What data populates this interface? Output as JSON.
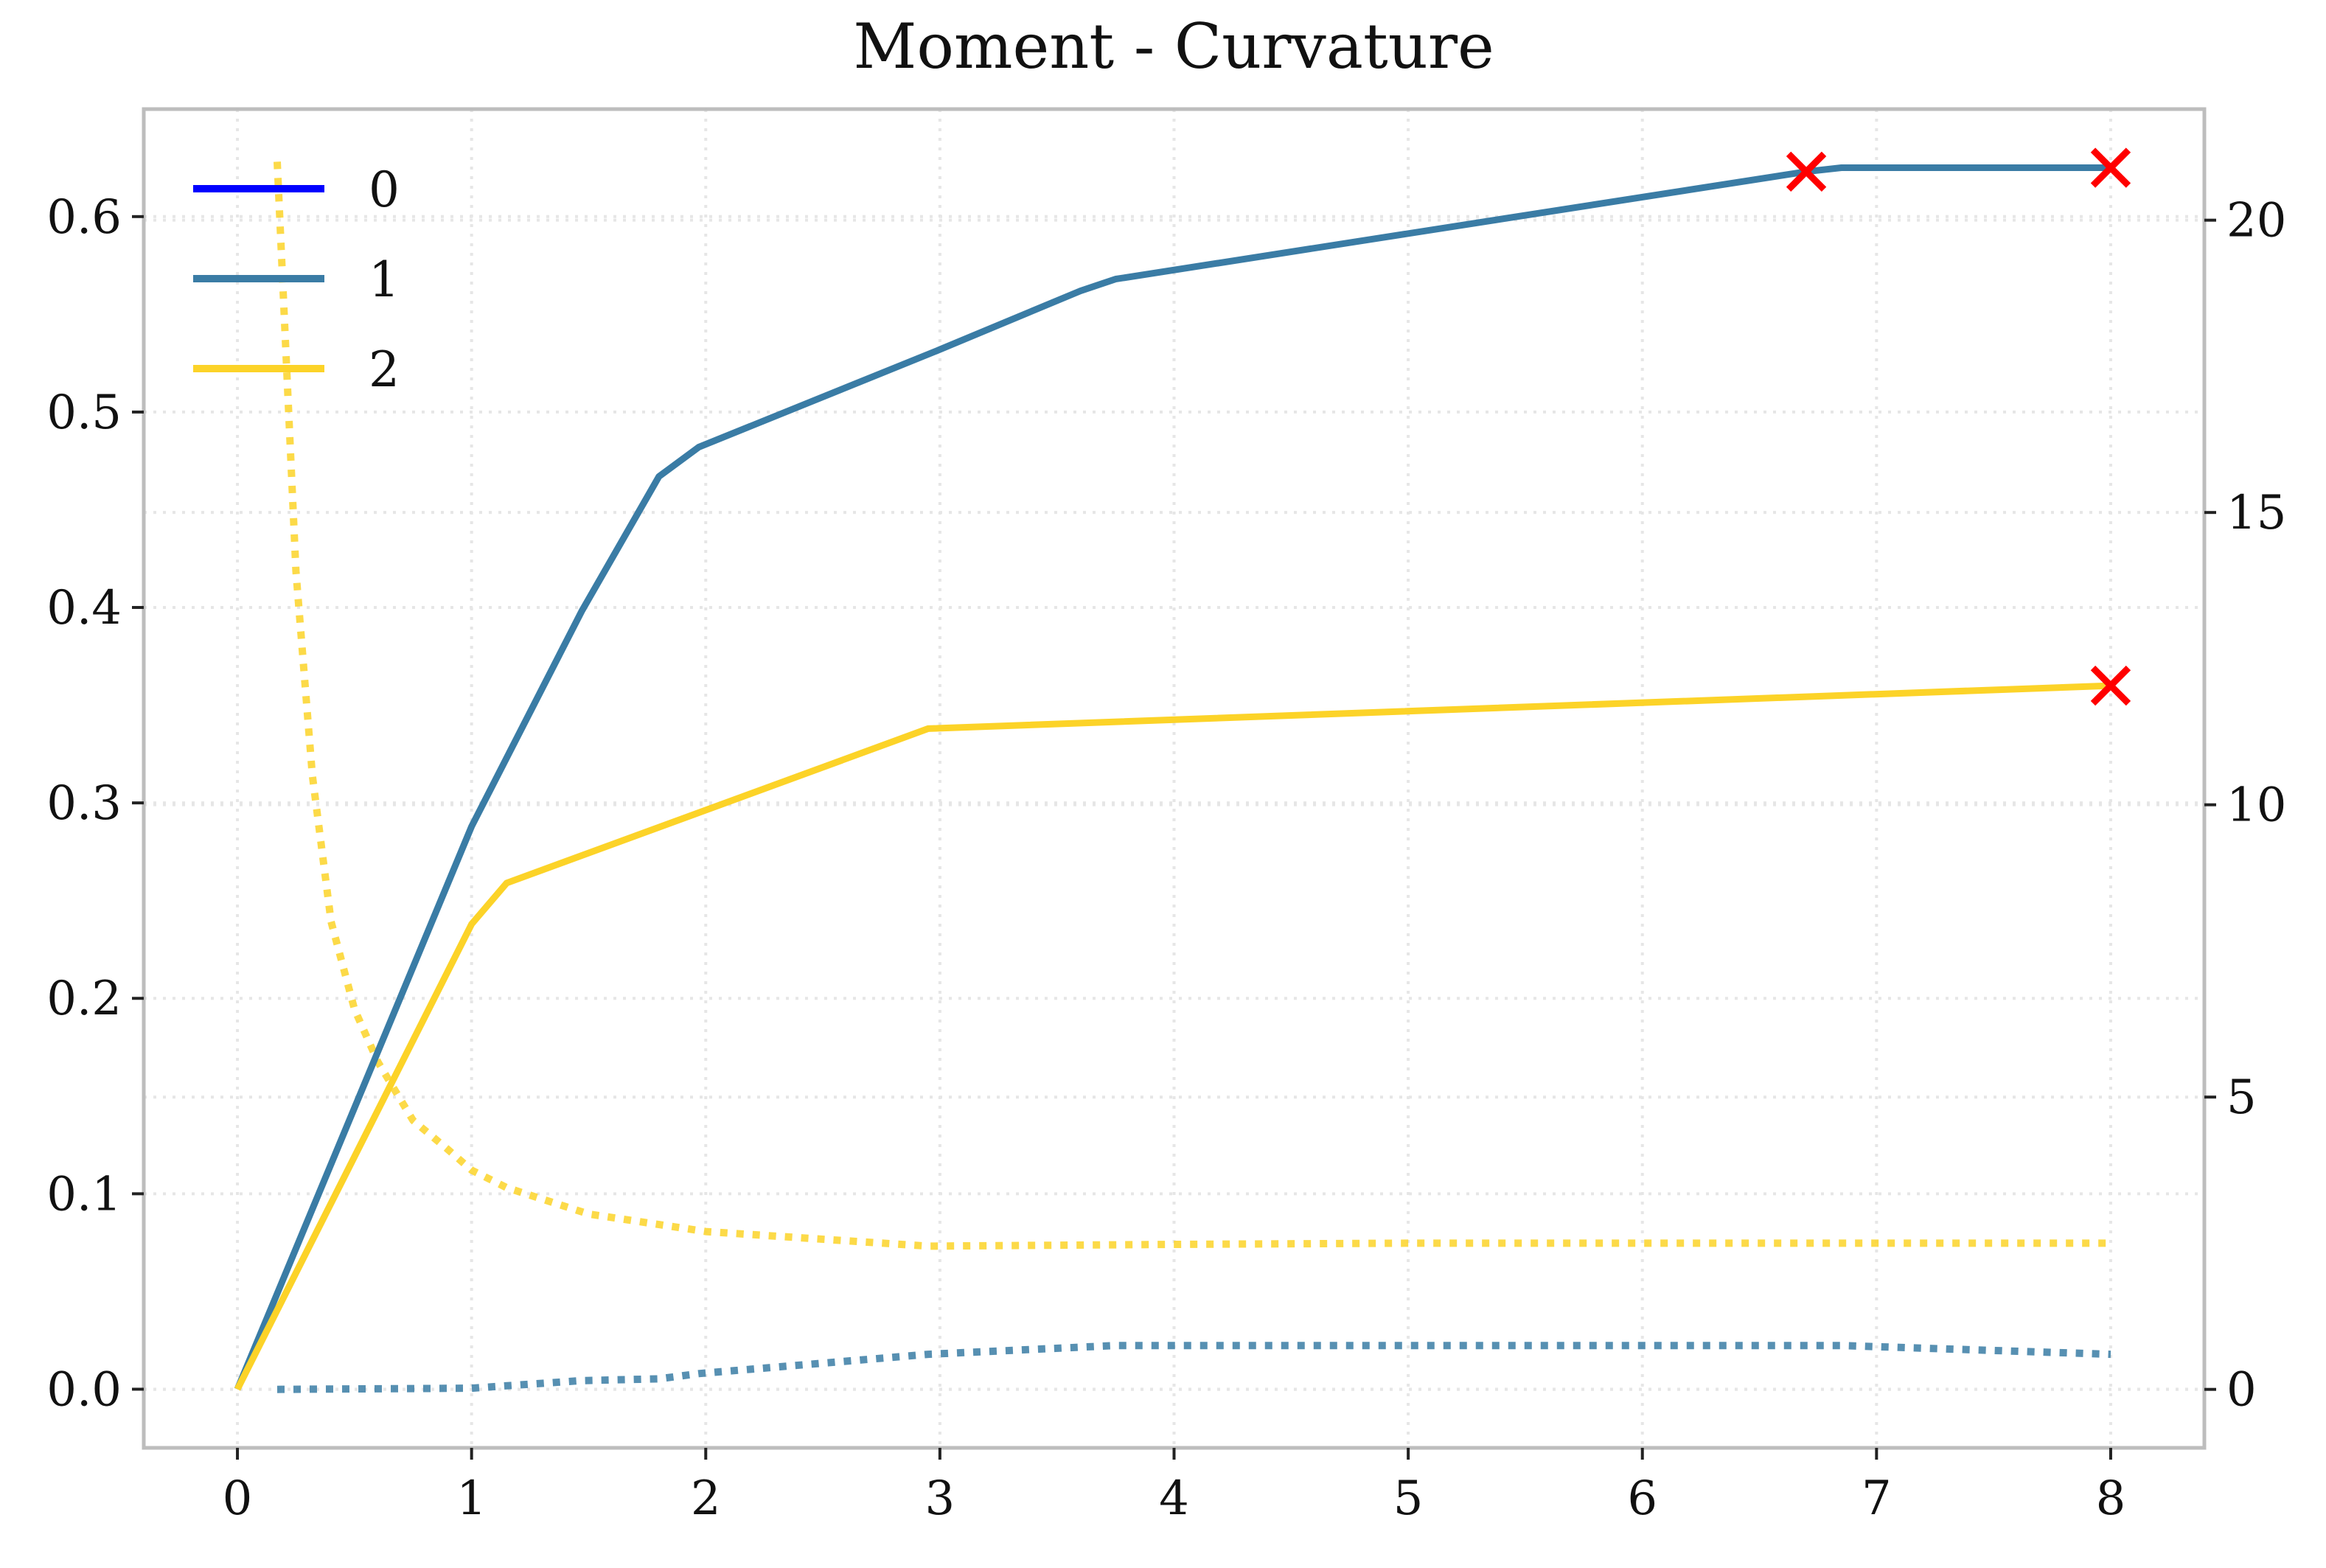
{
  "chart_data": {
    "type": "line",
    "title": "Moment - Curvature",
    "xlabel": "",
    "ylabel": "",
    "y2label": "",
    "xlim": [
      -0.4,
      8.4
    ],
    "ylim": [
      -0.03,
      0.655
    ],
    "y2lim": [
      -1.0,
      21.9
    ],
    "xticks": [
      "0",
      "1",
      "2",
      "3",
      "4",
      "5",
      "6",
      "7",
      "8"
    ],
    "yticks": [
      "0.0",
      "0.1",
      "0.2",
      "0.3",
      "0.4",
      "0.5",
      "0.6"
    ],
    "y2ticks": [
      "0",
      "5",
      "10",
      "15",
      "20"
    ],
    "grid": true,
    "legend_position": "top-left",
    "legend": [
      "0",
      "1",
      "2"
    ],
    "colors": {
      "series_0": "#0000ff",
      "series_1": "#3a7ca5",
      "series_2": "#fcd328",
      "failure_marker": "#ff0000",
      "grid": "#e6e6e6",
      "frame": "#bdbdbd"
    },
    "series": [
      {
        "name": "0",
        "axis": "left",
        "style": "solid",
        "x": [
          0.0
        ],
        "values": [
          0.0
        ]
      },
      {
        "name": "1",
        "axis": "left",
        "style": "solid",
        "x": [
          0.0,
          1.0,
          1.47,
          1.8,
          1.97,
          3.0,
          3.6,
          3.75,
          6.7,
          6.85,
          8.0
        ],
        "values": [
          0.0,
          0.288,
          0.398,
          0.467,
          0.482,
          0.532,
          0.562,
          0.568,
          0.623,
          0.625,
          0.625
        ]
      },
      {
        "name": "2",
        "axis": "left",
        "style": "solid",
        "x": [
          0.0,
          1.0,
          1.15,
          2.95,
          8.0
        ],
        "values": [
          0.0,
          0.238,
          0.259,
          0.338,
          0.36
        ]
      },
      {
        "name": "1",
        "axis": "right",
        "style": "dotted",
        "x": [
          0.17,
          1.0,
          1.47,
          1.8,
          1.97,
          2.95,
          3.75,
          6.7,
          6.85,
          8.0
        ],
        "values": [
          0.0,
          0.02,
          0.15,
          0.18,
          0.27,
          0.6,
          0.75,
          0.75,
          0.75,
          0.6
        ]
      },
      {
        "name": "2",
        "axis": "right",
        "style": "dotted",
        "x": [
          0.17,
          0.25,
          0.32,
          0.4,
          0.5,
          0.6,
          0.75,
          0.9,
          1.0,
          1.15,
          1.5,
          2.0,
          2.95,
          4.0,
          5.0,
          6.0,
          7.0,
          8.0
        ],
        "values": [
          21.0,
          14.0,
          10.5,
          8.0,
          6.5,
          5.6,
          4.6,
          4.1,
          3.75,
          3.45,
          3.0,
          2.7,
          2.45,
          2.48,
          2.5,
          2.5,
          2.5,
          2.5
        ]
      }
    ],
    "failure_markers": [
      {
        "x": 6.7,
        "y": 0.623
      },
      {
        "x": 8.0,
        "y": 0.625
      },
      {
        "x": 8.0,
        "y": 0.36
      }
    ]
  }
}
